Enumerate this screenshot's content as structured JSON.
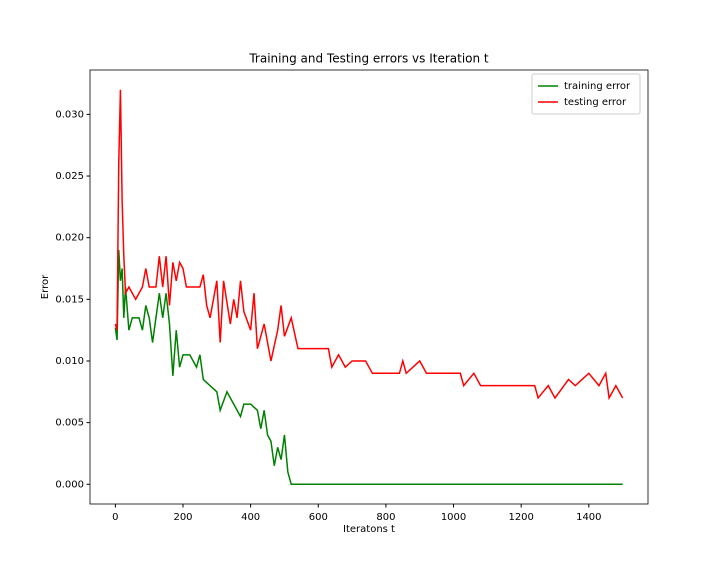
{
  "chart_data": {
    "type": "line",
    "title": "Training and Testing errors vs Iteration t",
    "xlabel": "Iteratons t",
    "ylabel": "Error",
    "xlim": [
      -75,
      1575
    ],
    "ylim": [
      -0.0016,
      0.0336
    ],
    "xticks": [
      0,
      200,
      400,
      600,
      800,
      1000,
      1200,
      1400
    ],
    "yticks": [
      {
        "value": 0,
        "label": "0.000"
      },
      {
        "value": 0.005,
        "label": "0.005"
      },
      {
        "value": 0.01,
        "label": "0.010"
      },
      {
        "value": 0.015,
        "label": "0.015"
      },
      {
        "value": 0.02,
        "label": "0.020"
      },
      {
        "value": 0.025,
        "label": "0.025"
      },
      {
        "value": 0.03,
        "label": "0.030"
      }
    ],
    "legend": "upper right",
    "series": [
      {
        "name": "training error",
        "color": "#008000",
        "x": [
          0,
          5,
          10,
          15,
          20,
          25,
          30,
          40,
          50,
          70,
          80,
          90,
          100,
          110,
          130,
          140,
          150,
          160,
          170,
          180,
          190,
          200,
          220,
          240,
          250,
          260,
          280,
          300,
          310,
          330,
          350,
          370,
          380,
          400,
          420,
          430,
          440,
          450,
          460,
          470,
          480,
          490,
          500,
          510,
          520,
          1500
        ],
        "values": [
          0.0127,
          0.0117,
          0.019,
          0.0165,
          0.0175,
          0.0135,
          0.016,
          0.0125,
          0.0135,
          0.0135,
          0.0125,
          0.0145,
          0.0135,
          0.0115,
          0.0155,
          0.0135,
          0.0155,
          0.013,
          0.0088,
          0.0125,
          0.0095,
          0.0105,
          0.0105,
          0.0095,
          0.0105,
          0.0085,
          0.008,
          0.0075,
          0.006,
          0.0075,
          0.0065,
          0.0055,
          0.0065,
          0.0065,
          0.006,
          0.0045,
          0.006,
          0.004,
          0.0035,
          0.0015,
          0.003,
          0.002,
          0.004,
          0.001,
          0,
          0
        ]
      },
      {
        "name": "testing error",
        "color": "#ff0000",
        "x": [
          0,
          5,
          10,
          15,
          20,
          25,
          30,
          40,
          60,
          80,
          90,
          100,
          120,
          130,
          140,
          150,
          160,
          170,
          180,
          190,
          200,
          210,
          250,
          260,
          270,
          280,
          300,
          310,
          320,
          340,
          350,
          360,
          370,
          380,
          400,
          410,
          420,
          440,
          460,
          480,
          490,
          500,
          520,
          540,
          580,
          630,
          640,
          660,
          680,
          700,
          740,
          760,
          840,
          850,
          860,
          900,
          920,
          1020,
          1030,
          1060,
          1080,
          1240,
          1250,
          1280,
          1300,
          1340,
          1360,
          1400,
          1430,
          1450,
          1460,
          1480,
          1500
        ],
        "values": [
          0.013,
          0.0125,
          0.026,
          0.032,
          0.023,
          0.0185,
          0.0155,
          0.016,
          0.015,
          0.016,
          0.0175,
          0.016,
          0.016,
          0.0185,
          0.016,
          0.0185,
          0.0145,
          0.018,
          0.0165,
          0.018,
          0.0175,
          0.016,
          0.016,
          0.017,
          0.0145,
          0.0135,
          0.0165,
          0.0115,
          0.0165,
          0.013,
          0.015,
          0.0135,
          0.0165,
          0.014,
          0.0125,
          0.0155,
          0.011,
          0.013,
          0.01,
          0.0125,
          0.0145,
          0.012,
          0.0135,
          0.011,
          0.011,
          0.011,
          0.0095,
          0.0105,
          0.0095,
          0.01,
          0.01,
          0.009,
          0.009,
          0.01,
          0.009,
          0.01,
          0.009,
          0.009,
          0.008,
          0.009,
          0.008,
          0.008,
          0.007,
          0.008,
          0.007,
          0.0085,
          0.008,
          0.009,
          0.008,
          0.009,
          0.007,
          0.008,
          0.007
        ]
      }
    ]
  }
}
